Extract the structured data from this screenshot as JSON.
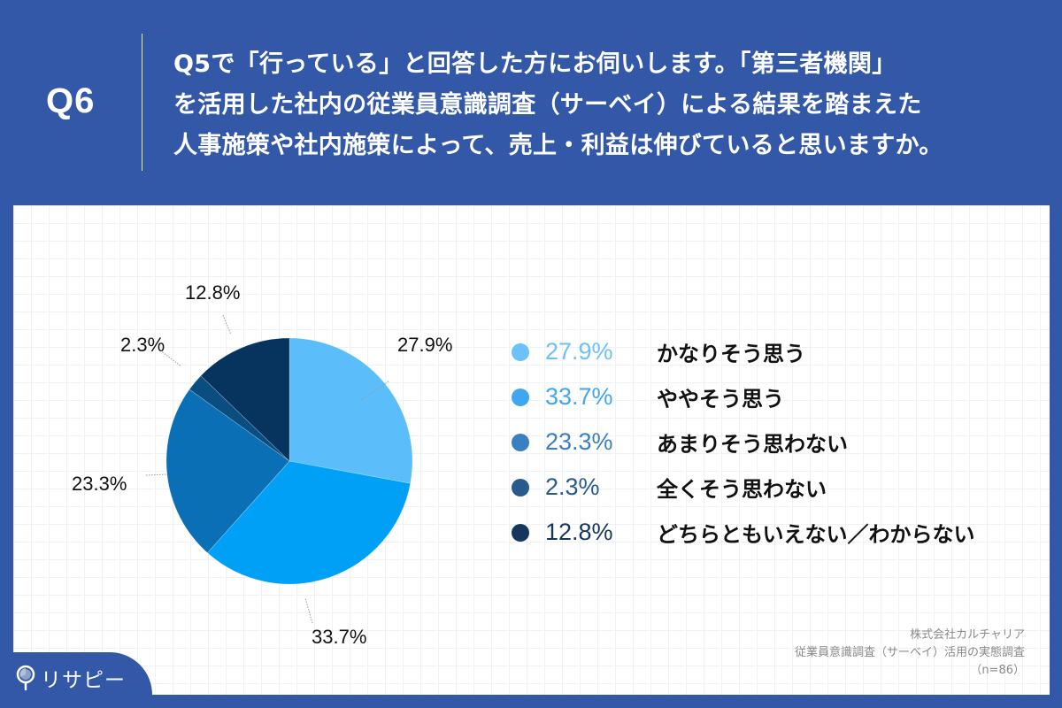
{
  "header": {
    "question_number": "Q6",
    "question_lines": [
      "Q5で「行っている」と回答した方にお伺いします。「第三者機関」",
      "を活用した社内の従業員意識調査（サーベイ）による結果を踏まえた",
      "人事施策や社内施策によって、売上・利益は伸びていると思いますか。"
    ],
    "background_color": "#3358A8"
  },
  "chart_data": {
    "type": "pie",
    "title": "Q5で「行っている」と回答した方にお伺いします。「第三者機関」を活用した社内の従業員意識調査（サーベイ）による結果を踏まえた人事施策や社内施策によって、売上・利益は伸びていると思いますか。",
    "categories": [
      "かなりそう思う",
      "ややそう思う",
      "あまりそう思わない",
      "全くそう思わない",
      "どちらともいえない／わからない"
    ],
    "values": [
      27.9,
      33.7,
      23.3,
      2.3,
      12.8
    ],
    "unit": "%",
    "colors": [
      "#5BBEFB",
      "#00A0F7",
      "#0A6FB5",
      "#0A4D80",
      "#06345F"
    ],
    "start_angle": "12 o'clock",
    "direction": "clockwise",
    "legend_position": "right",
    "n": 86
  },
  "pie_labels": [
    "27.9%",
    "33.7%",
    "23.3%",
    "2.3%",
    "12.8%"
  ],
  "legend": {
    "items": [
      {
        "pct": "27.9%",
        "label": "かなりそう思う",
        "color": "#6CC1FA"
      },
      {
        "pct": "33.7%",
        "label": "ややそう思う",
        "color": "#3FA6F2"
      },
      {
        "pct": "23.3%",
        "label": "あまりそう思わない",
        "color": "#3A7FC2"
      },
      {
        "pct": "2.3%",
        "label": "全くそう思わない",
        "color": "#285A8E"
      },
      {
        "pct": "12.8%",
        "label": "どちらともいえない／わからない",
        "color": "#16365E"
      }
    ]
  },
  "source": {
    "company": "株式会社カルチャリア",
    "survey": "従業員意識調査（サーベイ）活用の実態調査",
    "sample": "（n=86）"
  },
  "logo": {
    "text": "リサピー"
  }
}
